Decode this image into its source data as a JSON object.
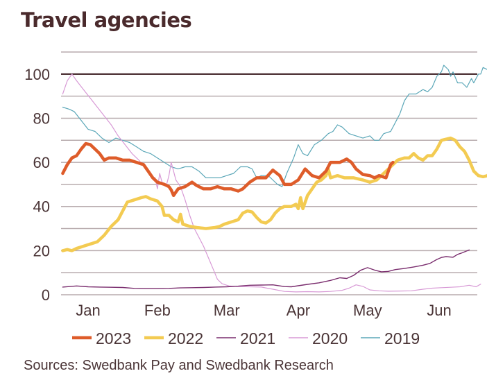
{
  "chart_data": {
    "type": "line",
    "title": "Travel agencies",
    "source": "Sources: Swedbank Pay and Swedbank Research",
    "xlabel": "",
    "ylabel": "",
    "ylim": [
      0,
      110
    ],
    "yticks": [
      0,
      20,
      40,
      60,
      80,
      100
    ],
    "ytick_labels": [
      "0",
      "20",
      "40",
      "60",
      "80",
      "100"
    ],
    "gridlines_y": [
      0,
      10,
      20,
      30,
      40,
      50,
      60,
      70,
      80,
      90,
      100,
      110
    ],
    "reference_line_y": 100,
    "x_unit": "day of year",
    "xlim": [
      3,
      184
    ],
    "xticks": [
      15,
      45,
      75,
      106,
      136,
      167
    ],
    "xtick_labels": [
      "Jan",
      "Feb",
      "Mar",
      "Apr",
      "May",
      "Jun"
    ],
    "grid": true,
    "legend_position": "bottom",
    "series": [
      {
        "name": "2019",
        "color": "#5ba7b8",
        "points": [
          [
            4,
            85
          ],
          [
            7,
            84
          ],
          [
            9,
            83
          ],
          [
            12,
            79
          ],
          [
            15,
            75
          ],
          [
            18,
            74
          ],
          [
            21,
            71
          ],
          [
            24,
            69
          ],
          [
            27,
            71
          ],
          [
            30,
            70
          ],
          [
            33,
            69
          ],
          [
            36,
            67
          ],
          [
            39,
            65
          ],
          [
            42,
            64
          ],
          [
            45,
            62
          ],
          [
            48,
            60
          ],
          [
            51,
            58
          ],
          [
            54,
            57
          ],
          [
            57,
            58
          ],
          [
            60,
            58
          ],
          [
            63,
            56
          ],
          [
            66,
            53
          ],
          [
            69,
            53
          ],
          [
            72,
            53
          ],
          [
            75,
            54
          ],
          [
            78,
            55
          ],
          [
            81,
            58
          ],
          [
            84,
            58
          ],
          [
            86,
            57
          ],
          [
            88,
            53
          ],
          [
            90,
            54
          ],
          [
            93,
            54
          ],
          [
            95,
            52
          ],
          [
            97,
            50
          ],
          [
            99,
            49
          ],
          [
            101,
            55
          ],
          [
            104,
            62
          ],
          [
            106,
            68
          ],
          [
            108,
            64
          ],
          [
            110,
            63
          ],
          [
            113,
            68
          ],
          [
            116,
            70
          ],
          [
            119,
            73
          ],
          [
            121,
            74
          ],
          [
            123,
            77
          ],
          [
            125,
            76
          ],
          [
            128,
            73
          ],
          [
            131,
            72
          ],
          [
            134,
            71
          ],
          [
            137,
            72
          ],
          [
            139,
            70
          ],
          [
            141,
            70
          ],
          [
            143,
            73
          ],
          [
            146,
            74
          ],
          [
            148,
            78
          ],
          [
            150,
            82
          ],
          [
            152,
            88
          ],
          [
            154,
            91
          ],
          [
            157,
            91
          ],
          [
            160,
            93
          ],
          [
            162,
            92
          ],
          [
            164,
            94
          ],
          [
            166,
            99
          ],
          [
            168,
            101
          ],
          [
            169,
            104
          ],
          [
            171,
            102
          ],
          [
            172,
            99
          ],
          [
            173,
            101
          ],
          [
            175,
            96
          ],
          [
            177,
            96
          ],
          [
            179,
            94
          ],
          [
            181,
            98
          ],
          [
            182,
            96
          ],
          [
            184,
            100
          ],
          [
            185,
            100
          ],
          [
            186,
            103
          ],
          [
            188,
            102
          ],
          [
            190,
            99
          ]
        ]
      },
      {
        "name": "2020",
        "color": "#d89ad6",
        "points": [
          [
            4,
            91
          ],
          [
            6,
            97
          ],
          [
            8,
            100
          ],
          [
            10,
            97
          ],
          [
            13,
            93
          ],
          [
            16,
            89
          ],
          [
            19,
            85
          ],
          [
            22,
            81
          ],
          [
            25,
            77
          ],
          [
            28,
            72
          ],
          [
            31,
            68
          ],
          [
            34,
            64
          ],
          [
            37,
            61
          ],
          [
            40,
            57
          ],
          [
            42,
            54
          ],
          [
            44,
            53
          ],
          [
            45,
            48
          ],
          [
            46,
            55
          ],
          [
            47,
            51
          ],
          [
            49,
            50
          ],
          [
            50,
            54
          ],
          [
            51,
            60
          ],
          [
            52,
            56
          ],
          [
            53,
            52
          ],
          [
            55,
            49
          ],
          [
            57,
            43
          ],
          [
            59,
            36
          ],
          [
            61,
            30
          ],
          [
            63,
            26
          ],
          [
            65,
            22
          ],
          [
            67,
            17
          ],
          [
            69,
            12
          ],
          [
            71,
            7
          ],
          [
            73,
            5
          ],
          [
            76,
            4
          ],
          [
            80,
            3.7
          ],
          [
            85,
            3.6
          ],
          [
            90,
            3.5
          ],
          [
            95,
            2.5
          ],
          [
            100,
            1.5
          ],
          [
            105,
            1.3
          ],
          [
            110,
            1.4
          ],
          [
            115,
            1.3
          ],
          [
            120,
            1.5
          ],
          [
            125,
            2
          ],
          [
            128,
            3
          ],
          [
            131,
            4.5
          ],
          [
            134,
            3.8
          ],
          [
            137,
            2.2
          ],
          [
            141,
            1.8
          ],
          [
            145,
            1.6
          ],
          [
            150,
            1.7
          ],
          [
            155,
            1.8
          ],
          [
            160,
            2.5
          ],
          [
            164,
            3
          ],
          [
            168,
            3.2
          ],
          [
            172,
            3.4
          ],
          [
            176,
            3.6
          ],
          [
            180,
            4.3
          ],
          [
            183,
            3.6
          ],
          [
            185,
            4.8
          ]
        ]
      },
      {
        "name": "2021",
        "color": "#7a2d6e",
        "points": [
          [
            4,
            3.5
          ],
          [
            10,
            4
          ],
          [
            15,
            3.6
          ],
          [
            20,
            3.5
          ],
          [
            25,
            3.4
          ],
          [
            30,
            3.3
          ],
          [
            35,
            2.9
          ],
          [
            40,
            2.8
          ],
          [
            45,
            2.8
          ],
          [
            50,
            2.9
          ],
          [
            55,
            3.1
          ],
          [
            60,
            3.2
          ],
          [
            65,
            3.3
          ],
          [
            70,
            3.5
          ],
          [
            75,
            3.6
          ],
          [
            80,
            3.9
          ],
          [
            85,
            4.3
          ],
          [
            90,
            4.4
          ],
          [
            95,
            4.5
          ],
          [
            100,
            3.7
          ],
          [
            103,
            3.6
          ],
          [
            106,
            4.1
          ],
          [
            110,
            4.7
          ],
          [
            115,
            5.4
          ],
          [
            120,
            6.5
          ],
          [
            124,
            7.7
          ],
          [
            127,
            7.4
          ],
          [
            130,
            8.8
          ],
          [
            133,
            11.1
          ],
          [
            136,
            12.3
          ],
          [
            139,
            11.2
          ],
          [
            142,
            10.4
          ],
          [
            145,
            10.6
          ],
          [
            148,
            11.4
          ],
          [
            152,
            11.9
          ],
          [
            156,
            12.6
          ],
          [
            160,
            13.4
          ],
          [
            163,
            14.2
          ],
          [
            166,
            16
          ],
          [
            168,
            16.9
          ],
          [
            170,
            17.3
          ],
          [
            173,
            17
          ],
          [
            175,
            18.3
          ],
          [
            177,
            19
          ],
          [
            180,
            20.3
          ]
        ]
      },
      {
        "name": "2022",
        "color": "#f3cb52",
        "points": [
          [
            4,
            20
          ],
          [
            6,
            20.5
          ],
          [
            8,
            20
          ],
          [
            10,
            21
          ],
          [
            13,
            22
          ],
          [
            16,
            23
          ],
          [
            19,
            24
          ],
          [
            22,
            27
          ],
          [
            25,
            31
          ],
          [
            28,
            34
          ],
          [
            30,
            38
          ],
          [
            32,
            42
          ],
          [
            35,
            43
          ],
          [
            38,
            44
          ],
          [
            40,
            44.5
          ],
          [
            42,
            43.5
          ],
          [
            45,
            42.5
          ],
          [
            47,
            40
          ],
          [
            48,
            36
          ],
          [
            50,
            36
          ],
          [
            52,
            34
          ],
          [
            54,
            33
          ],
          [
            55,
            36.5
          ],
          [
            56,
            32
          ],
          [
            59,
            31
          ],
          [
            62,
            30.5
          ],
          [
            66,
            30
          ],
          [
            70,
            30.5
          ],
          [
            72,
            31
          ],
          [
            74,
            32
          ],
          [
            77,
            33
          ],
          [
            80,
            34
          ],
          [
            82,
            37
          ],
          [
            84,
            38
          ],
          [
            86,
            37.5
          ],
          [
            88,
            35
          ],
          [
            90,
            33
          ],
          [
            92,
            32.5
          ],
          [
            94,
            34
          ],
          [
            96,
            37
          ],
          [
            98,
            39
          ],
          [
            100,
            40
          ],
          [
            103,
            40
          ],
          [
            105,
            41
          ],
          [
            106,
            39
          ],
          [
            107,
            44
          ],
          [
            108,
            39
          ],
          [
            110,
            45
          ],
          [
            112,
            48
          ],
          [
            114,
            51
          ],
          [
            116,
            52
          ],
          [
            118,
            54
          ],
          [
            119,
            57
          ],
          [
            120,
            53
          ],
          [
            123,
            54
          ],
          [
            126,
            53
          ],
          [
            130,
            53
          ],
          [
            134,
            52
          ],
          [
            137,
            51
          ],
          [
            140,
            52
          ],
          [
            143,
            55
          ],
          [
            146,
            58
          ],
          [
            149,
            61
          ],
          [
            152,
            62
          ],
          [
            154,
            62
          ],
          [
            156,
            64
          ],
          [
            158,
            62
          ],
          [
            160,
            61
          ],
          [
            162,
            63
          ],
          [
            164,
            63
          ],
          [
            166,
            66
          ],
          [
            168,
            70
          ],
          [
            170,
            70.5
          ],
          [
            172,
            71
          ],
          [
            174,
            70
          ],
          [
            176,
            67
          ],
          [
            178,
            65
          ],
          [
            180,
            61
          ],
          [
            182,
            56
          ],
          [
            184,
            54
          ],
          [
            186,
            53.5
          ],
          [
            188,
            54
          ],
          [
            190,
            57
          ]
        ]
      },
      {
        "name": "2023",
        "color": "#de5c2a",
        "points": [
          [
            4,
            55
          ],
          [
            6,
            59
          ],
          [
            8,
            62
          ],
          [
            10,
            63
          ],
          [
            12,
            66
          ],
          [
            14,
            68.5
          ],
          [
            16,
            68
          ],
          [
            18,
            66
          ],
          [
            20,
            64
          ],
          [
            22,
            61
          ],
          [
            24,
            62
          ],
          [
            27,
            62
          ],
          [
            30,
            61
          ],
          [
            33,
            61
          ],
          [
            36,
            60
          ],
          [
            39,
            59
          ],
          [
            41,
            56
          ],
          [
            43,
            53
          ],
          [
            45,
            51
          ],
          [
            48,
            50
          ],
          [
            50,
            49
          ],
          [
            51,
            47.5
          ],
          [
            52,
            45
          ],
          [
            54,
            48
          ],
          [
            57,
            49
          ],
          [
            60,
            51
          ],
          [
            62,
            49.5
          ],
          [
            65,
            48
          ],
          [
            68,
            48
          ],
          [
            71,
            49
          ],
          [
            74,
            48
          ],
          [
            77,
            48
          ],
          [
            80,
            47
          ],
          [
            82,
            48
          ],
          [
            85,
            51
          ],
          [
            88,
            53
          ],
          [
            92,
            53
          ],
          [
            95,
            56.5
          ],
          [
            98,
            54
          ],
          [
            100,
            50
          ],
          [
            103,
            50
          ],
          [
            106,
            52
          ],
          [
            109,
            57
          ],
          [
            112,
            54
          ],
          [
            115,
            53
          ],
          [
            118,
            56
          ],
          [
            120,
            60
          ],
          [
            122,
            60
          ],
          [
            124,
            60
          ],
          [
            127,
            61.5
          ],
          [
            129,
            60
          ],
          [
            131,
            57
          ],
          [
            134,
            54.5
          ],
          [
            137,
            54
          ],
          [
            139,
            53
          ],
          [
            141,
            54
          ],
          [
            144,
            53
          ],
          [
            146,
            59
          ],
          [
            147,
            60
          ]
        ]
      }
    ]
  }
}
